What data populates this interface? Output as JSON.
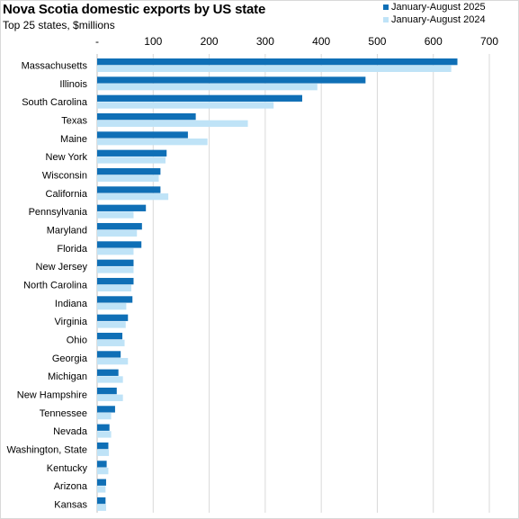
{
  "chart_data": {
    "type": "bar",
    "orientation": "horizontal",
    "title": "Nova Scotia domestic exports by US state",
    "subtitle": "Top 25 states, $millions",
    "xlabel": "",
    "ylabel": "",
    "xlim": [
      0,
      700
    ],
    "x_ticks": [
      0,
      100,
      200,
      300,
      400,
      500,
      600,
      700
    ],
    "x_tick_labels": [
      "-",
      "100",
      "200",
      "300",
      "400",
      "500",
      "600",
      "700"
    ],
    "x_axis_position": "top",
    "grid": true,
    "legend_position": "top-right",
    "categories": [
      "Massachusetts",
      "Illinois",
      "South Carolina",
      "Texas",
      "Maine",
      "New York",
      "Wisconsin",
      "California",
      "Pennsylvania",
      "Maryland",
      "Florida",
      "New Jersey",
      "North Carolina",
      "Indiana",
      "Virginia",
      "Ohio",
      "Georgia",
      "Michigan",
      "New Hampshire",
      "Tennessee",
      "Nevada",
      "Washington, State",
      "Kentucky",
      "Arizona",
      "Kansas"
    ],
    "series": [
      {
        "name": "January-August 2025",
        "color": "#0f6fb6",
        "values": [
          643,
          479,
          366,
          176,
          162,
          124,
          113,
          113,
          87,
          80,
          79,
          65,
          65,
          63,
          55,
          45,
          42,
          38,
          35,
          32,
          22,
          20,
          17,
          16,
          15
        ]
      },
      {
        "name": "January-August 2024",
        "color": "#bfe3f7",
        "values": [
          632,
          393,
          315,
          269,
          197,
          122,
          110,
          127,
          65,
          71,
          65,
          65,
          61,
          52,
          51,
          49,
          55,
          46,
          46,
          25,
          25,
          21,
          20,
          15,
          16
        ]
      }
    ]
  }
}
